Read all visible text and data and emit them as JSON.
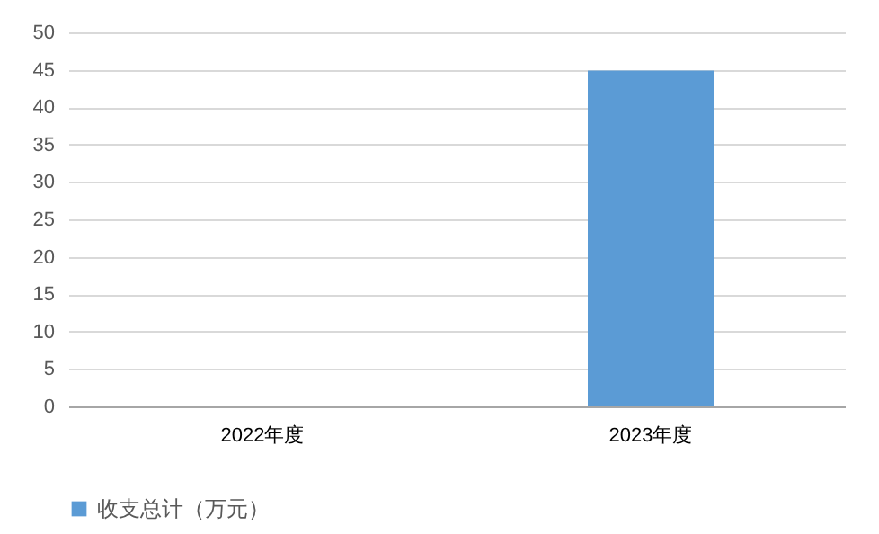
{
  "chart_data": {
    "type": "bar",
    "categories": [
      "2022年度",
      "2023年度"
    ],
    "series": [
      {
        "name": "收支总计（万元）",
        "color": "#5b9bd5",
        "values": [
          0,
          44.9
        ]
      }
    ],
    "ylim": [
      0,
      50
    ],
    "yticks": [
      0,
      5,
      10,
      15,
      20,
      25,
      30,
      35,
      40,
      45,
      50
    ],
    "grid": "y",
    "legend": "bottom"
  }
}
